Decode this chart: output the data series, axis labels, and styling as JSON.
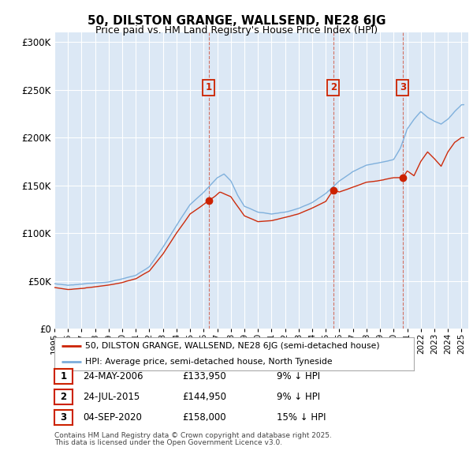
{
  "title_line1": "50, DILSTON GRANGE, WALLSEND, NE28 6JG",
  "title_line2": "Price paid vs. HM Land Registry's House Price Index (HPI)",
  "ylim": [
    0,
    310000
  ],
  "yticks": [
    0,
    50000,
    100000,
    150000,
    200000,
    250000,
    300000
  ],
  "ytick_labels": [
    "£0",
    "£50K",
    "£100K",
    "£150K",
    "£200K",
    "£250K",
    "£300K"
  ],
  "bg_color": "#ffffff",
  "plot_bg_color": "#dce8f5",
  "grid_color": "#ffffff",
  "hpi_color": "#7aaddb",
  "price_color": "#cc2200",
  "xlim_start": 1995,
  "xlim_end": 2025.5,
  "legend_entries": [
    "50, DILSTON GRANGE, WALLSEND, NE28 6JG (semi-detached house)",
    "HPI: Average price, semi-detached house, North Tyneside"
  ],
  "transactions": [
    {
      "num": 1,
      "date": "24-MAY-2006",
      "price": 133950,
      "price_str": "£133,950",
      "pct": "9%",
      "year": 2006.38
    },
    {
      "num": 2,
      "date": "24-JUL-2015",
      "price": 144950,
      "price_str": "£144,950",
      "pct": "9%",
      "year": 2015.55
    },
    {
      "num": 3,
      "date": "04-SEP-2020",
      "price": 158000,
      "price_str": "£158,000",
      "pct": "15%",
      "year": 2020.67
    }
  ],
  "footer_line1": "Contains HM Land Registry data © Crown copyright and database right 2025.",
  "footer_line2": "This data is licensed under the Open Government Licence v3.0.",
  "hpi_anchors_x": [
    1995,
    1996,
    1997,
    1998,
    1999,
    2000,
    2001,
    2002,
    2003,
    2004,
    2005,
    2006,
    2007,
    2007.5,
    2008,
    2008.5,
    2009,
    2010,
    2011,
    2012,
    2013,
    2014,
    2015,
    2016,
    2017,
    2018,
    2019,
    2020,
    2020.5,
    2021,
    2021.5,
    2022,
    2022.5,
    2023,
    2023.5,
    2024,
    2024.5,
    2025
  ],
  "hpi_anchors_v": [
    47000,
    45000,
    46000,
    47500,
    49000,
    52000,
    56000,
    65000,
    85000,
    108000,
    130000,
    143000,
    158000,
    162000,
    155000,
    140000,
    128000,
    122000,
    120000,
    122000,
    126000,
    132000,
    142000,
    155000,
    165000,
    172000,
    175000,
    178000,
    190000,
    210000,
    220000,
    228000,
    222000,
    218000,
    215000,
    220000,
    228000,
    235000
  ],
  "price_anchors_x": [
    1995,
    1996,
    1997,
    1998,
    1999,
    2000,
    2001,
    2002,
    2003,
    2004,
    2005,
    2006,
    2006.38,
    2006.8,
    2007.2,
    2008,
    2008.5,
    2009,
    2009.5,
    2010,
    2011,
    2012,
    2013,
    2014,
    2015,
    2015.55,
    2016,
    2017,
    2018,
    2019,
    2020,
    2020.67,
    2021,
    2021.5,
    2022,
    2022.5,
    2023,
    2023.5,
    2024,
    2024.5,
    2025
  ],
  "price_anchors_v": [
    43000,
    41000,
    42000,
    43500,
    45000,
    48000,
    52000,
    60000,
    78000,
    100000,
    120000,
    130000,
    133950,
    138000,
    143000,
    138000,
    128000,
    118000,
    115000,
    112000,
    113000,
    116000,
    120000,
    126000,
    133000,
    144950,
    143000,
    148000,
    153000,
    155000,
    158000,
    158000,
    165000,
    160000,
    175000,
    185000,
    178000,
    170000,
    185000,
    195000,
    200000
  ]
}
